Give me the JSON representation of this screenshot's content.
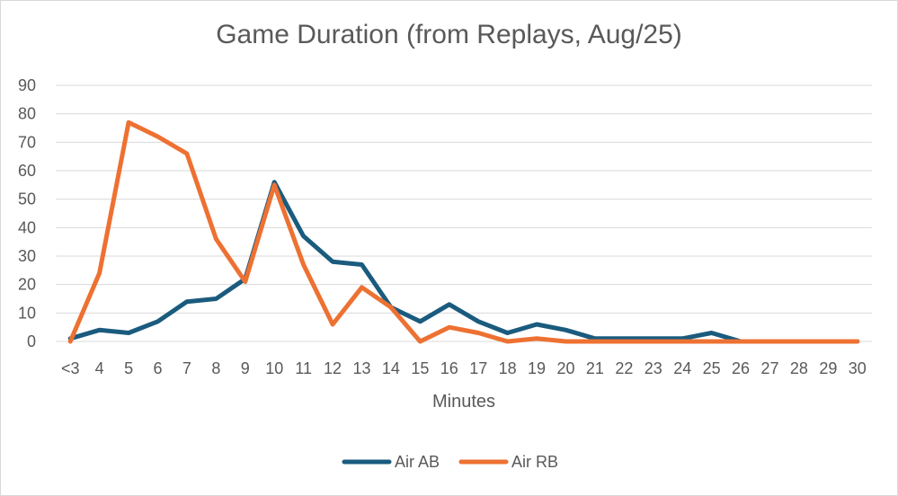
{
  "chart_data": {
    "type": "line",
    "title": "Game Duration (from Replays, Aug/25)",
    "xlabel": "Minutes",
    "ylabel": "",
    "categories": [
      "<3",
      "4",
      "5",
      "6",
      "7",
      "8",
      "9",
      "10",
      "11",
      "12",
      "13",
      "14",
      "15",
      "16",
      "17",
      "18",
      "19",
      "20",
      "21",
      "22",
      "23",
      "24",
      "25",
      "26",
      "27",
      "28",
      "29",
      "30"
    ],
    "ylim": [
      0,
      90
    ],
    "yticks": [
      0,
      10,
      20,
      30,
      40,
      50,
      60,
      70,
      80,
      90
    ],
    "grid": true,
    "legend_position": "bottom",
    "series": [
      {
        "name": "Air AB",
        "color": "#1a5b7e",
        "values": [
          1,
          4,
          3,
          7,
          14,
          15,
          22,
          56,
          37,
          28,
          27,
          12,
          7,
          13,
          7,
          3,
          6,
          4,
          1,
          1,
          1,
          1,
          3,
          0,
          0,
          0,
          0,
          0
        ]
      },
      {
        "name": "Air RB",
        "color": "#ed7132",
        "values": [
          0,
          24,
          77,
          72,
          66,
          36,
          21,
          55,
          27,
          6,
          19,
          12,
          0,
          5,
          3,
          0,
          1,
          0,
          0,
          0,
          0,
          0,
          0,
          0,
          0,
          0,
          0,
          0
        ]
      }
    ]
  }
}
